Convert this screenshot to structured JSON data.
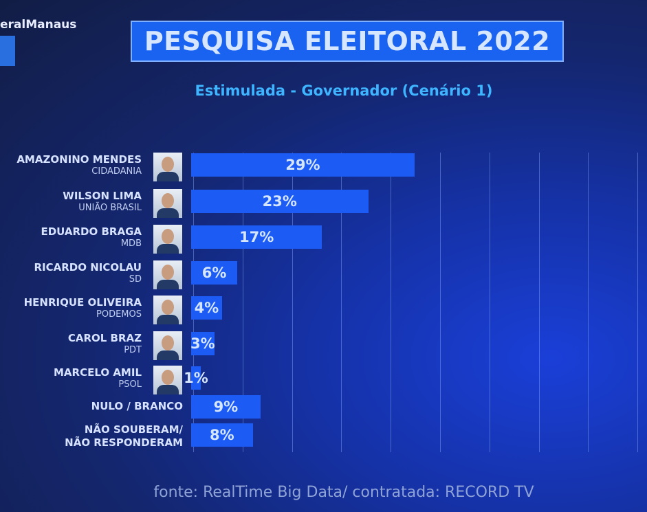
{
  "channel": {
    "brand": "eralManaus"
  },
  "header": {
    "title": "PESQUISA ELEITORAL 2022",
    "subtitle": "Estimulada - Governador (Cenário 1)"
  },
  "footer": {
    "source": "fonte: RealTime Big Data/ contratada: RECORD TV"
  },
  "colors": {
    "bar": "#1c5cf5",
    "subtitle": "#3fb4ff"
  },
  "chart_data": {
    "type": "bar",
    "orientation": "horizontal",
    "title": "PESQUISA ELEITORAL 2022",
    "subtitle": "Estimulada - Governador (Cenário 1)",
    "unit": "%",
    "grid": true,
    "candidates": [
      {
        "name": "AMAZONINO MENDES",
        "party": "CIDADANIA",
        "value": 29,
        "label": "29%"
      },
      {
        "name": "WILSON LIMA",
        "party": "UNIÃO BRASIL",
        "value": 23,
        "label": "23%"
      },
      {
        "name": "EDUARDO BRAGA",
        "party": "MDB",
        "value": 17,
        "label": "17%"
      },
      {
        "name": "RICARDO NICOLAU",
        "party": "SD",
        "value": 6,
        "label": "6%"
      },
      {
        "name": "HENRIQUE OLIVEIRA",
        "party": "PODEMOS",
        "value": 4,
        "label": "4%"
      },
      {
        "name": "CAROL BRAZ",
        "party": "PDT",
        "value": 3,
        "label": "3%"
      },
      {
        "name": "MARCELO AMIL",
        "party": "PSOL",
        "value": 1,
        "label": "1%"
      }
    ],
    "others": [
      {
        "name": "NULO / BRANCO",
        "value": 9,
        "label": "9%"
      },
      {
        "name": "NÃO SOUBERAM/ NÃO RESPONDERAM",
        "line1": "NÃO SOUBERAM/",
        "line2": "NÃO RESPONDERAM",
        "value": 8,
        "label": "8%"
      }
    ]
  }
}
